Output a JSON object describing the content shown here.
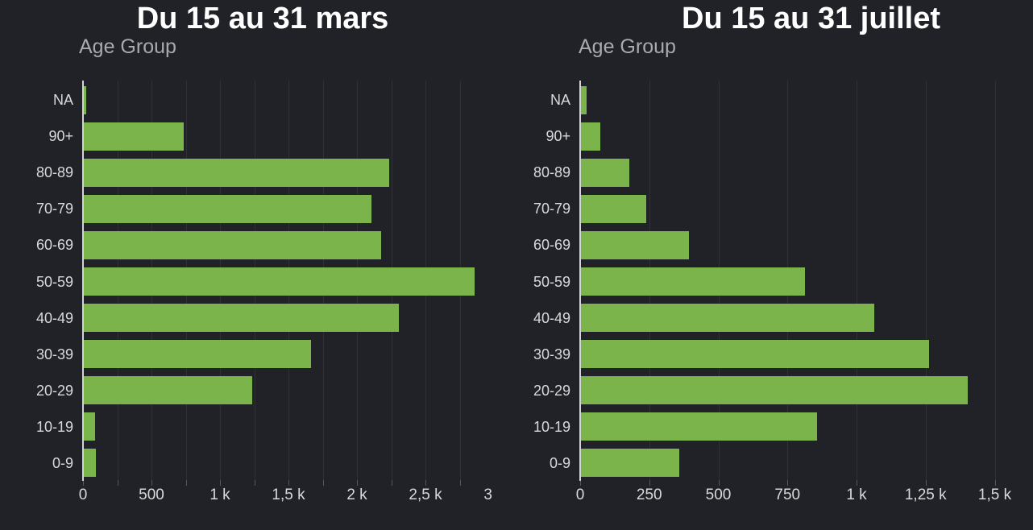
{
  "page": {
    "background": "#212227"
  },
  "colors": {
    "bar_green": "#7bb44a",
    "gridline": "#2f3136",
    "axis_line": "#d3d4d6",
    "tick": "#55575b",
    "tick_label": "#d8d9da",
    "axis_title": "#a8aaad",
    "title": "#ffffff"
  },
  "chart_data": [
    {
      "type": "bar",
      "orientation": "horizontal",
      "title": "Du 15 au 31 mars",
      "ylabel": "Age Group",
      "xlabel": "",
      "categories": [
        "NA",
        "90+",
        "80-89",
        "70-79",
        "60-69",
        "50-59",
        "40-49",
        "30-39",
        "20-29",
        "10-19",
        "0-9"
      ],
      "values": [
        20,
        730,
        2230,
        2100,
        2170,
        2850,
        2300,
        1660,
        1230,
        80,
        90
      ],
      "xlim": [
        0,
        3000
      ],
      "x_tick_step": 250,
      "x_label_step": 500,
      "x_tick_labels": [
        "0",
        "500",
        "1 k",
        "1,5 k",
        "2 k",
        "2,5 k",
        "3 k"
      ],
      "x_axis_clipped_right": true,
      "grid": true,
      "legend": "none",
      "bar_color": "#7bb44a"
    },
    {
      "type": "bar",
      "orientation": "horizontal",
      "title": "Du 15 au 31 juillet",
      "ylabel": "Age Group",
      "xlabel": "",
      "categories": [
        "NA",
        "90+",
        "80-89",
        "70-79",
        "60-69",
        "50-59",
        "40-49",
        "30-39",
        "20-29",
        "10-19",
        "0-9"
      ],
      "values": [
        20,
        70,
        175,
        235,
        390,
        810,
        1060,
        1260,
        1400,
        855,
        355
      ],
      "xlim": [
        0,
        1640
      ],
      "x_tick_step": 250,
      "x_label_step": 250,
      "x_tick_labels": [
        "0",
        "250",
        "500",
        "750",
        "1 k",
        "1,25 k",
        "1,5 k"
      ],
      "x_axis_clipped_right": true,
      "grid": true,
      "legend": "none",
      "bar_color": "#7bb44a"
    }
  ]
}
